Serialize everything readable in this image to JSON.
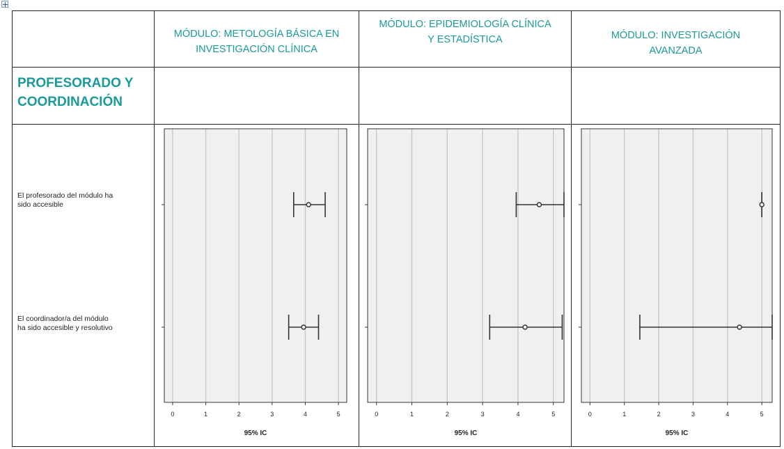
{
  "table": {
    "modules": [
      "MÓDULO: METOLOGÍA BÁSICA EN INVESTIGACIÓN CLÍNICA",
      "MÓDULO: EPIDEMIOLOGÍA CLÍNICA Y ESTADÍSTICA",
      "MÓDULO: INVESTIGACIÓN AVANZADA"
    ],
    "module_lines": [
      [
        "MÓDULO: METOLOGÍA BÁSICA EN",
        "INVESTIGACIÓN CLÍNICA"
      ],
      [
        "MÓDULO: EPIDEMIOLOGÍA CLÍNICA",
        "Y ESTADÍSTICA"
      ],
      [
        "MÓDULO: INVESTIGACIÓN",
        "AVANZADA"
      ]
    ],
    "section_title_lines": [
      "PROFESORADO Y",
      "COORDINACIÓN"
    ],
    "row_label_lines": [
      [
        "El profesorado  del módulo ha",
        "sido accesible"
      ],
      [
        "El coordinador/a  del módulo",
        "ha sido accesible y resolutivo"
      ]
    ]
  },
  "colors": {
    "header_teal": "#1a9a9a",
    "plot_bg": "#f0f0f0",
    "grid": "#c8c8c8",
    "ink": "#333333"
  },
  "chart_data": [
    {
      "type": "errorbar",
      "module": "MÓDULO: METOLOGÍA BÁSICA EN INVESTIGACIÓN CLÍNICA",
      "xlabel": "95% IC",
      "xticks": [
        0,
        1,
        2,
        3,
        4,
        5
      ],
      "xlim": [
        -0.25,
        5.25
      ],
      "grid": true,
      "series": [
        {
          "category": "El profesorado  del módulo ha sido accesible",
          "mean": 4.1,
          "low": 3.65,
          "high": 4.6
        },
        {
          "category": "El coordinador/a  del módulo ha sido accesible y resolutivo",
          "mean": 3.95,
          "low": 3.5,
          "high": 4.4
        }
      ]
    },
    {
      "type": "errorbar",
      "module": "MÓDULO: EPIDEMIOLOGÍA CLÍNICA Y ESTADÍSTICA",
      "xlabel": "95% IC",
      "xticks": [
        0,
        1,
        2,
        3,
        4,
        5
      ],
      "xlim": [
        -0.25,
        5.3
      ],
      "grid": true,
      "series": [
        {
          "category": "El profesorado  del módulo ha sido accesible",
          "mean": 4.6,
          "low": 3.95,
          "high": 5.3
        },
        {
          "category": "El coordinador/a  del módulo ha sido accesible y resolutivo",
          "mean": 4.2,
          "low": 3.2,
          "high": 5.25
        }
      ]
    },
    {
      "type": "errorbar",
      "module": "MÓDULO: INVESTIGACIÓN AVANZADA",
      "xlabel": "95% IC",
      "xticks": [
        0,
        1,
        2,
        3,
        4,
        5
      ],
      "xlim": [
        -0.25,
        5.3
      ],
      "grid": true,
      "series": [
        {
          "category": "El profesorado  del módulo ha sido accesible",
          "mean": 5.0,
          "low": 5.0,
          "high": 5.0
        },
        {
          "category": "El coordinador/a  del módulo ha sido accesible y resolutivo",
          "mean": 4.35,
          "low": 1.45,
          "high": 5.3
        }
      ]
    }
  ]
}
